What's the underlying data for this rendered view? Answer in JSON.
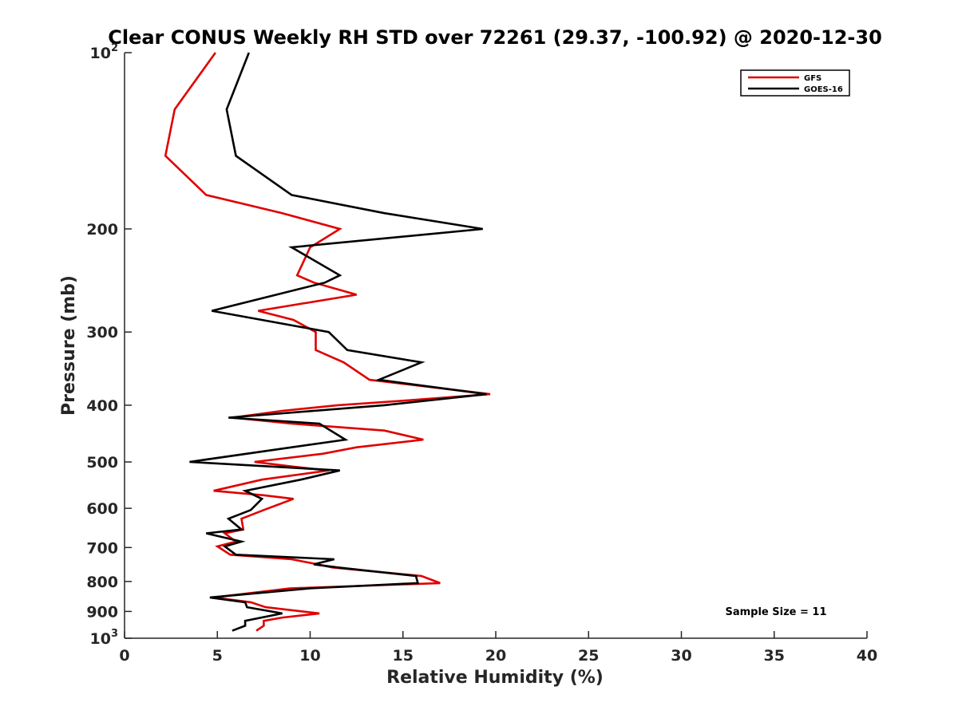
{
  "chart_data": {
    "type": "line",
    "title": "Clear CONUS Weekly RH STD over 72261 (29.37, -100.92) @ 2020-12-30",
    "xlabel": "Relative Humidity (%)",
    "ylabel": "Pressure (mb)",
    "xlim": [
      0,
      40
    ],
    "ylim": [
      100,
      1000
    ],
    "y_scale": "log",
    "y_reversed": true,
    "x_ticks": [
      {
        "value": 0,
        "label": "0"
      },
      {
        "value": 5,
        "label": "5"
      },
      {
        "value": 10,
        "label": "10"
      },
      {
        "value": 15,
        "label": "15"
      },
      {
        "value": 20,
        "label": "20"
      },
      {
        "value": 25,
        "label": "25"
      },
      {
        "value": 30,
        "label": "30"
      },
      {
        "value": 35,
        "label": "35"
      },
      {
        "value": 40,
        "label": "40"
      }
    ],
    "y_ticks": [
      {
        "value": 100,
        "base": "10",
        "exp": "2"
      },
      {
        "value": 200,
        "label": "200"
      },
      {
        "value": 300,
        "label": "300"
      },
      {
        "value": 400,
        "label": "400"
      },
      {
        "value": 500,
        "label": "500"
      },
      {
        "value": 600,
        "label": "600"
      },
      {
        "value": 700,
        "label": "700"
      },
      {
        "value": 800,
        "label": "800"
      },
      {
        "value": 900,
        "label": "900"
      },
      {
        "value": 1000,
        "base": "10",
        "exp": "3"
      }
    ],
    "grid": false,
    "legend": {
      "position": "top-right"
    },
    "annotation": "Sample Size = 11",
    "series": [
      {
        "name": "GFS",
        "color": "#e00000",
        "points": [
          [
            4.9,
            100
          ],
          [
            2.7,
            125
          ],
          [
            2.2,
            150
          ],
          [
            4.4,
            175
          ],
          [
            8.5,
            188
          ],
          [
            11.6,
            200
          ],
          [
            10.0,
            215
          ],
          [
            9.3,
            240
          ],
          [
            10.2,
            247
          ],
          [
            12.5,
            259
          ],
          [
            7.2,
            276
          ],
          [
            9.1,
            286
          ],
          [
            10.3,
            300
          ],
          [
            10.3,
            322
          ],
          [
            11.8,
            338
          ],
          [
            13.2,
            362
          ],
          [
            19.7,
            383
          ],
          [
            15.0,
            393
          ],
          [
            11.5,
            400
          ],
          [
            8.5,
            409
          ],
          [
            5.8,
            420
          ],
          [
            9.0,
            430
          ],
          [
            14.0,
            442
          ],
          [
            16.1,
            458
          ],
          [
            12.5,
            472
          ],
          [
            10.7,
            484
          ],
          [
            7.0,
            500
          ],
          [
            9.0,
            509
          ],
          [
            11.0,
            517
          ],
          [
            7.4,
            536
          ],
          [
            4.8,
            560
          ],
          [
            7.5,
            570
          ],
          [
            9.1,
            578
          ],
          [
            7.5,
            604
          ],
          [
            6.3,
            625
          ],
          [
            6.4,
            652
          ],
          [
            5.4,
            662
          ],
          [
            6.0,
            684
          ],
          [
            5.0,
            697
          ],
          [
            5.7,
            720
          ],
          [
            9.0,
            733
          ],
          [
            10.4,
            748
          ],
          [
            11.2,
            757
          ],
          [
            16.0,
            783
          ],
          [
            17.0,
            805
          ],
          [
            8.9,
            822
          ],
          [
            4.8,
            852
          ],
          [
            6.8,
            868
          ],
          [
            7.6,
            885
          ],
          [
            10.5,
            907
          ],
          [
            8.5,
            922
          ],
          [
            7.5,
            934
          ],
          [
            7.5,
            952
          ],
          [
            7.1,
            971
          ]
        ]
      },
      {
        "name": "GOES-16",
        "color": "#000000",
        "points": [
          [
            6.7,
            100
          ],
          [
            5.5,
            125
          ],
          [
            6.0,
            150
          ],
          [
            9.0,
            175
          ],
          [
            14.0,
            188
          ],
          [
            19.3,
            200
          ],
          [
            9.0,
            215
          ],
          [
            11.6,
            240
          ],
          [
            10.8,
            247
          ],
          [
            4.7,
            276
          ],
          [
            11.0,
            300
          ],
          [
            12.0,
            322
          ],
          [
            16.0,
            338
          ],
          [
            13.7,
            362
          ],
          [
            19.5,
            383
          ],
          [
            14.0,
            400
          ],
          [
            5.6,
            420
          ],
          [
            10.5,
            430
          ],
          [
            11.9,
            458
          ],
          [
            9.0,
            472
          ],
          [
            3.5,
            500
          ],
          [
            11.6,
            517
          ],
          [
            9.5,
            536
          ],
          [
            6.5,
            560
          ],
          [
            7.4,
            578
          ],
          [
            6.8,
            604
          ],
          [
            5.6,
            625
          ],
          [
            6.3,
            652
          ],
          [
            4.4,
            662
          ],
          [
            6.3,
            684
          ],
          [
            5.4,
            697
          ],
          [
            6.0,
            720
          ],
          [
            11.3,
            733
          ],
          [
            10.2,
            748
          ],
          [
            11.5,
            757
          ],
          [
            15.7,
            783
          ],
          [
            15.8,
            805
          ],
          [
            10.0,
            822
          ],
          [
            4.6,
            852
          ],
          [
            6.5,
            868
          ],
          [
            6.6,
            885
          ],
          [
            8.5,
            907
          ],
          [
            6.5,
            934
          ],
          [
            6.5,
            952
          ],
          [
            5.8,
            971
          ]
        ]
      }
    ]
  }
}
